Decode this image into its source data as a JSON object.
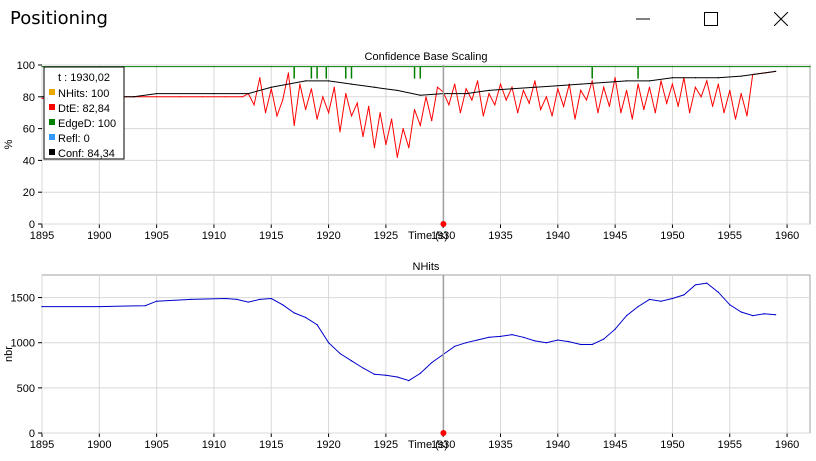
{
  "window": {
    "title": "Positioning",
    "minimize_icon": "minimize-icon",
    "maximize_icon": "maximize-icon",
    "close_icon": "close-icon"
  },
  "colors": {
    "nhits": "#e8a800",
    "dte": "#ff0000",
    "edged": "#008000",
    "refl": "#3399ff",
    "conf": "#000000",
    "nhits_line": "#0000cc",
    "cursor": "#a0a0a0",
    "grid": "#d8d8d8"
  },
  "chart_data": [
    {
      "type": "line",
      "title": "Confidence Base Scaling",
      "xlabel": "Time (s)",
      "ylabel": "%",
      "xlim": [
        1895,
        1962
      ],
      "ylim": [
        0,
        100
      ],
      "xticks": [
        1895,
        1900,
        1905,
        1910,
        1915,
        1920,
        1925,
        1930,
        1935,
        1940,
        1945,
        1950,
        1955,
        1960
      ],
      "yticks": [
        0,
        20,
        40,
        60,
        80,
        100
      ],
      "grid": true,
      "legend_position": "top-left",
      "legend": {
        "t_label": "t : 1930,02",
        "entries": [
          {
            "name": "NHits",
            "value": "100",
            "label": "NHits: 100"
          },
          {
            "name": "DtE",
            "value": "82,84",
            "label": "DtE: 82,84"
          },
          {
            "name": "EdgeD",
            "value": "100",
            "label": "EdgeD: 100"
          },
          {
            "name": "Refl",
            "value": "0",
            "label": "Refl: 0"
          },
          {
            "name": "Conf",
            "value": "84,34",
            "label": "Conf: 84,34"
          }
        ]
      },
      "cursor_time": 1930.02,
      "series": [
        {
          "name": "DtE",
          "x": [
            1895,
            1897,
            1899,
            1901,
            1903,
            1905,
            1907,
            1909,
            1911,
            1912.5,
            1913,
            1913.5,
            1914,
            1914.5,
            1915,
            1915.5,
            1916,
            1916.5,
            1917,
            1917.5,
            1918,
            1918.5,
            1919,
            1919.5,
            1920,
            1920.5,
            1921,
            1921.5,
            1922,
            1922.5,
            1923,
            1923.5,
            1924,
            1924.5,
            1925,
            1925.5,
            1926,
            1926.5,
            1927,
            1927.5,
            1928,
            1928.5,
            1929,
            1929.5,
            1930,
            1930.5,
            1931,
            1931.5,
            1932,
            1932.5,
            1933,
            1933.5,
            1934,
            1934.5,
            1935,
            1935.5,
            1936,
            1936.5,
            1937,
            1937.5,
            1938,
            1938.5,
            1939,
            1939.5,
            1940,
            1940.5,
            1941,
            1941.5,
            1942,
            1942.5,
            1943,
            1943.5,
            1944,
            1944.5,
            1945,
            1945.5,
            1946,
            1946.5,
            1947,
            1947.5,
            1948,
            1948.5,
            1949,
            1949.5,
            1950,
            1950.5,
            1951,
            1951.5,
            1952,
            1952.5,
            1953,
            1953.5,
            1954,
            1954.5,
            1955,
            1955.5,
            1956,
            1956.5,
            1957,
            1958,
            1959
          ],
          "y": [
            79,
            80,
            80,
            80,
            80,
            80,
            80,
            80,
            80,
            80,
            82,
            75,
            92,
            70,
            85,
            68,
            78,
            95,
            62,
            88,
            72,
            85,
            66,
            80,
            70,
            86,
            58,
            82,
            68,
            76,
            55,
            74,
            48,
            70,
            50,
            66,
            42,
            60,
            48,
            72,
            62,
            80,
            65,
            86,
            83,
            75,
            88,
            70,
            85,
            78,
            90,
            68,
            82,
            75,
            88,
            78,
            86,
            70,
            84,
            76,
            90,
            72,
            80,
            68,
            85,
            74,
            88,
            66,
            84,
            78,
            90,
            70,
            86,
            74,
            92,
            70,
            84,
            66,
            88,
            72,
            86,
            70,
            90,
            76,
            88,
            74,
            92,
            70,
            86,
            80,
            90,
            74,
            88,
            70,
            84,
            66,
            82,
            68,
            94,
            95,
            96
          ],
          "values_note": "DtE"
        },
        {
          "name": "Conf",
          "x": [
            1895,
            1903,
            1905,
            1910,
            1913,
            1915,
            1918,
            1920,
            1922,
            1924,
            1926,
            1928,
            1930,
            1932,
            1934,
            1936,
            1938,
            1940,
            1942,
            1944,
            1946,
            1948,
            1950,
            1952,
            1954,
            1956,
            1958,
            1959
          ],
          "y": [
            80,
            80,
            82,
            82,
            82,
            86,
            90,
            90,
            88,
            86,
            84,
            81,
            82,
            82,
            84,
            85,
            86,
            87,
            88,
            89,
            90,
            90,
            92,
            92,
            92,
            93,
            95,
            96
          ]
        },
        {
          "name": "EdgeD",
          "x": [
            1895,
            1962
          ],
          "y": [
            99,
            99
          ],
          "dips": [
            1917,
            1918.5,
            1919,
            1919.8,
            1921.5,
            1922,
            1927.5,
            1928,
            1943,
            1947
          ]
        }
      ]
    },
    {
      "type": "line",
      "title": "NHits",
      "xlabel": "Time (s)",
      "ylabel": "nbr",
      "xlim": [
        1895,
        1962
      ],
      "ylim": [
        0,
        1750
      ],
      "xticks": [
        1895,
        1900,
        1905,
        1910,
        1915,
        1920,
        1925,
        1930,
        1935,
        1940,
        1945,
        1950,
        1955,
        1960
      ],
      "yticks": [
        0,
        500,
        1000,
        1500
      ],
      "grid": true,
      "cursor_time": 1930.02,
      "series": [
        {
          "name": "NHits",
          "x": [
            1895,
            1900,
            1904,
            1905,
            1908,
            1911,
            1912,
            1913,
            1914,
            1915,
            1916,
            1917,
            1918,
            1919,
            1920,
            1921,
            1922,
            1923,
            1924,
            1925,
            1926,
            1927,
            1928,
            1929,
            1930,
            1931,
            1932,
            1933,
            1934,
            1935,
            1936,
            1937,
            1938,
            1939,
            1940,
            1941,
            1942,
            1943,
            1944,
            1945,
            1946,
            1947,
            1948,
            1949,
            1950,
            1951,
            1952,
            1953,
            1954,
            1955,
            1956,
            1957,
            1958,
            1959
          ],
          "y": [
            1400,
            1400,
            1410,
            1460,
            1480,
            1490,
            1480,
            1450,
            1480,
            1490,
            1420,
            1330,
            1280,
            1200,
            1000,
            880,
            800,
            720,
            650,
            640,
            620,
            580,
            660,
            780,
            870,
            960,
            1000,
            1030,
            1060,
            1070,
            1090,
            1060,
            1020,
            1000,
            1030,
            1010,
            980,
            980,
            1040,
            1150,
            1300,
            1400,
            1480,
            1460,
            1490,
            1530,
            1640,
            1660,
            1560,
            1420,
            1340,
            1300,
            1320,
            1310
          ]
        }
      ]
    }
  ]
}
